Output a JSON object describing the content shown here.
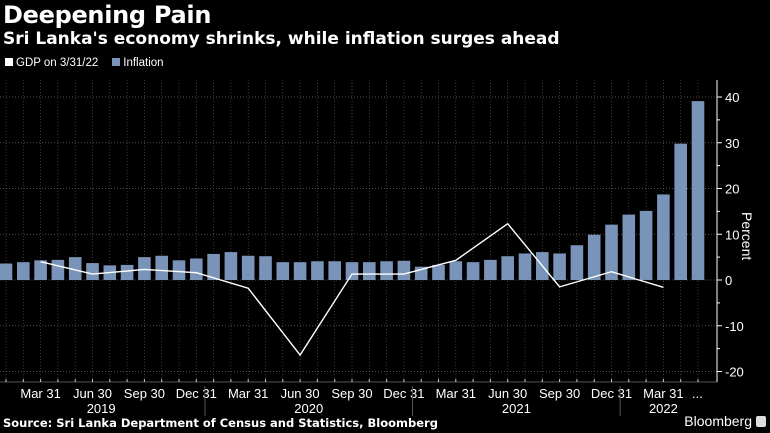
{
  "header": {
    "title": "Deepening Pain",
    "subtitle": "Sri Lanka's economy shrinks, while inflation surges ahead"
  },
  "footer": {
    "source": "Source: Sri Lanka Department of Census and Statistics, Bloomberg",
    "brand": "Bloomberg"
  },
  "chart_data": {
    "type": "bar",
    "ylabel": "Percent",
    "ylim": [
      -22,
      44
    ],
    "yticks": [
      40,
      30,
      20,
      10,
      0,
      -10,
      -20
    ],
    "grid": true,
    "legend_position": "top-left",
    "x_tick_labels": [
      "Mar 31",
      "Jun 30",
      "Sep 30",
      "Dec 31",
      "Mar 31",
      "Jun 30",
      "Sep 30",
      "Dec 31",
      "Mar 31",
      "Jun 30",
      "Sep 30",
      "Dec 31",
      "Mar 31",
      "..."
    ],
    "x_tick_index": [
      2,
      5,
      8,
      11,
      14,
      17,
      20,
      23,
      26,
      29,
      32,
      35,
      38,
      40
    ],
    "years": [
      {
        "label": "2019",
        "start": 0,
        "end": 11
      },
      {
        "label": "2020",
        "start": 12,
        "end": 23
      },
      {
        "label": "2021",
        "start": 24,
        "end": 35
      },
      {
        "label": "2022",
        "start": 36,
        "end": 40
      }
    ],
    "months": [
      "2019-01",
      "2019-02",
      "2019-03",
      "2019-04",
      "2019-05",
      "2019-06",
      "2019-07",
      "2019-08",
      "2019-09",
      "2019-10",
      "2019-11",
      "2019-12",
      "2020-01",
      "2020-02",
      "2020-03",
      "2020-04",
      "2020-05",
      "2020-06",
      "2020-07",
      "2020-08",
      "2020-09",
      "2020-10",
      "2020-11",
      "2020-12",
      "2021-01",
      "2021-02",
      "2021-03",
      "2021-04",
      "2021-05",
      "2021-06",
      "2021-07",
      "2021-08",
      "2021-09",
      "2021-10",
      "2021-11",
      "2021-12",
      "2022-01",
      "2022-02",
      "2022-03",
      "2022-04",
      "2022-05"
    ],
    "series": [
      {
        "name": "Inflation",
        "kind": "bar",
        "color": "#7a93b8",
        "values": [
          3.6,
          3.9,
          4.3,
          4.4,
          5.0,
          3.7,
          3.2,
          3.3,
          5.0,
          5.3,
          4.3,
          4.7,
          5.7,
          6.1,
          5.3,
          5.2,
          3.9,
          3.9,
          4.1,
          4.1,
          3.9,
          3.9,
          4.1,
          4.2,
          2.9,
          3.3,
          4.1,
          3.9,
          4.4,
          5.2,
          5.8,
          6.1,
          5.8,
          7.6,
          9.9,
          12.1,
          14.3,
          15.1,
          18.7,
          29.8,
          39.1
        ]
      },
      {
        "name": "GDP on 3/31/22",
        "kind": "line",
        "color": "#ffffff",
        "x_index": [
          2,
          5,
          8,
          11,
          14,
          17,
          20,
          23,
          26,
          29,
          32,
          35,
          38
        ],
        "values": [
          4.0,
          1.3,
          2.3,
          1.6,
          -1.8,
          -16.4,
          1.3,
          1.3,
          4.3,
          12.3,
          -1.5,
          1.8,
          -1.6
        ]
      }
    ]
  }
}
